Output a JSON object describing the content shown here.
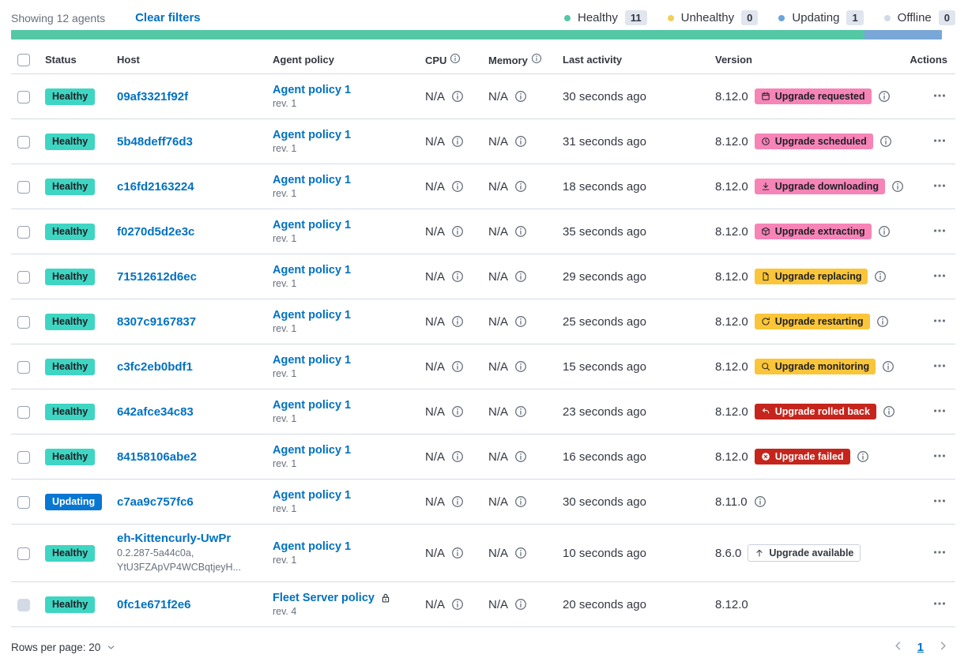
{
  "colors": {
    "link": "#0071C2",
    "healthy_badge": "#3ED5C3",
    "updating_badge": "#0877D2",
    "pink": "#F684B7",
    "warning": "#FAC539",
    "danger": "#C5251C",
    "bar_green": "#54C8A5",
    "bar_blue": "#79A7D7"
  },
  "header": {
    "showing": "Showing 12 agents",
    "clear_filters": "Clear filters",
    "legend": [
      {
        "label": "Healthy",
        "count": "11",
        "color": "#54C8A5"
      },
      {
        "label": "Unhealthy",
        "count": "0",
        "color": "#F0D05A"
      },
      {
        "label": "Updating",
        "count": "1",
        "color": "#6AA5DC"
      },
      {
        "label": "Offline",
        "count": "0",
        "color": "#D3DAE6"
      }
    ]
  },
  "status_bar": {
    "segments": [
      {
        "status": "healthy",
        "color": "#54C8A5",
        "fraction": 0.9167
      },
      {
        "status": "updating",
        "color": "#79A7D7",
        "fraction": 0.0833
      }
    ]
  },
  "table": {
    "columns": [
      {
        "label": "Status"
      },
      {
        "label": "Host"
      },
      {
        "label": "Agent policy"
      },
      {
        "label": "CPU",
        "info": true
      },
      {
        "label": "Memory",
        "info": true
      },
      {
        "label": "Last activity"
      },
      {
        "label": "Version"
      },
      {
        "label": "Actions",
        "align": "right"
      }
    ],
    "rows": [
      {
        "status": "Healthy",
        "status_style": "healthy",
        "host": "09af3321f92f",
        "policy": "Agent policy 1",
        "revision": "rev. 1",
        "cpu": "N/A",
        "memory": "N/A",
        "last_activity": "30 seconds ago",
        "version": "8.12.0",
        "upgrade": {
          "label": "Upgrade requested",
          "style": "pink",
          "icon": "calendar-icon"
        },
        "version_info": true
      },
      {
        "status": "Healthy",
        "status_style": "healthy",
        "host": "5b48deff76d3",
        "policy": "Agent policy 1",
        "revision": "rev. 1",
        "cpu": "N/A",
        "memory": "N/A",
        "last_activity": "31 seconds ago",
        "version": "8.12.0",
        "upgrade": {
          "label": "Upgrade scheduled",
          "style": "pink",
          "icon": "clock-icon"
        },
        "version_info": true
      },
      {
        "status": "Healthy",
        "status_style": "healthy",
        "host": "c16fd2163224",
        "policy": "Agent policy 1",
        "revision": "rev. 1",
        "cpu": "N/A",
        "memory": "N/A",
        "last_activity": "18 seconds ago",
        "version": "8.12.0",
        "upgrade": {
          "label": "Upgrade downloading",
          "style": "pink",
          "icon": "download-icon"
        },
        "version_info": true
      },
      {
        "status": "Healthy",
        "status_style": "healthy",
        "host": "f0270d5d2e3c",
        "policy": "Agent policy 1",
        "revision": "rev. 1",
        "cpu": "N/A",
        "memory": "N/A",
        "last_activity": "35 seconds ago",
        "version": "8.12.0",
        "upgrade": {
          "label": "Upgrade extracting",
          "style": "pink",
          "icon": "package-icon"
        },
        "version_info": true
      },
      {
        "status": "Healthy",
        "status_style": "healthy",
        "host": "71512612d6ec",
        "policy": "Agent policy 1",
        "revision": "rev. 1",
        "cpu": "N/A",
        "memory": "N/A",
        "last_activity": "29 seconds ago",
        "version": "8.12.0",
        "upgrade": {
          "label": "Upgrade replacing",
          "style": "warning",
          "icon": "document-icon"
        },
        "version_info": true
      },
      {
        "status": "Healthy",
        "status_style": "healthy",
        "host": "8307c9167837",
        "policy": "Agent policy 1",
        "revision": "rev. 1",
        "cpu": "N/A",
        "memory": "N/A",
        "last_activity": "25 seconds ago",
        "version": "8.12.0",
        "upgrade": {
          "label": "Upgrade restarting",
          "style": "warning",
          "icon": "refresh-icon"
        },
        "version_info": true
      },
      {
        "status": "Healthy",
        "status_style": "healthy",
        "host": "c3fc2eb0bdf1",
        "policy": "Agent policy 1",
        "revision": "rev. 1",
        "cpu": "N/A",
        "memory": "N/A",
        "last_activity": "15 seconds ago",
        "version": "8.12.0",
        "upgrade": {
          "label": "Upgrade monitoring",
          "style": "warning",
          "icon": "inspect-icon"
        },
        "version_info": true
      },
      {
        "status": "Healthy",
        "status_style": "healthy",
        "host": "642afce34c83",
        "policy": "Agent policy 1",
        "revision": "rev. 1",
        "cpu": "N/A",
        "memory": "N/A",
        "last_activity": "23 seconds ago",
        "version": "8.12.0",
        "upgrade": {
          "label": "Upgrade rolled back",
          "style": "danger",
          "icon": "return-arrow-icon"
        },
        "version_info": true
      },
      {
        "status": "Healthy",
        "status_style": "healthy",
        "host": "84158106abe2",
        "policy": "Agent policy 1",
        "revision": "rev. 1",
        "cpu": "N/A",
        "memory": "N/A",
        "last_activity": "16 seconds ago",
        "version": "8.12.0",
        "upgrade": {
          "label": "Upgrade failed",
          "style": "danger",
          "icon": "error-icon"
        },
        "version_info": true
      },
      {
        "status": "Updating",
        "status_style": "updating",
        "host": "c7aa9c757fc6",
        "policy": "Agent policy 1",
        "revision": "rev. 1",
        "cpu": "N/A",
        "memory": "N/A",
        "last_activity": "30 seconds ago",
        "version": "8.11.0",
        "upgrade": null,
        "version_info": true
      },
      {
        "status": "Healthy",
        "status_style": "healthy",
        "host": "eh-Kittencurly-UwPr",
        "host_sub": [
          "0.2.287-5a44c0a,",
          "YtU3FZApVP4WCBqtjeyH..."
        ],
        "policy": "Agent policy 1",
        "revision": "rev. 1",
        "cpu": "N/A",
        "memory": "N/A",
        "last_activity": "10 seconds ago",
        "version": "8.6.0",
        "upgrade": {
          "label": "Upgrade available",
          "style": "hollow",
          "icon": "arrow-up-icon"
        },
        "version_info": false
      },
      {
        "status": "Healthy",
        "status_style": "healthy",
        "host": "0fc1e671f2e6",
        "policy": "Fleet Server policy",
        "policy_lock": true,
        "revision": "rev. 4",
        "cpu": "N/A",
        "memory": "N/A",
        "last_activity": "20 seconds ago",
        "version": "8.12.0",
        "upgrade": null,
        "version_info": false,
        "checkbox_disabled": true
      }
    ]
  },
  "footer": {
    "rows_per_page": "Rows per page: 20",
    "current_page": "1"
  }
}
